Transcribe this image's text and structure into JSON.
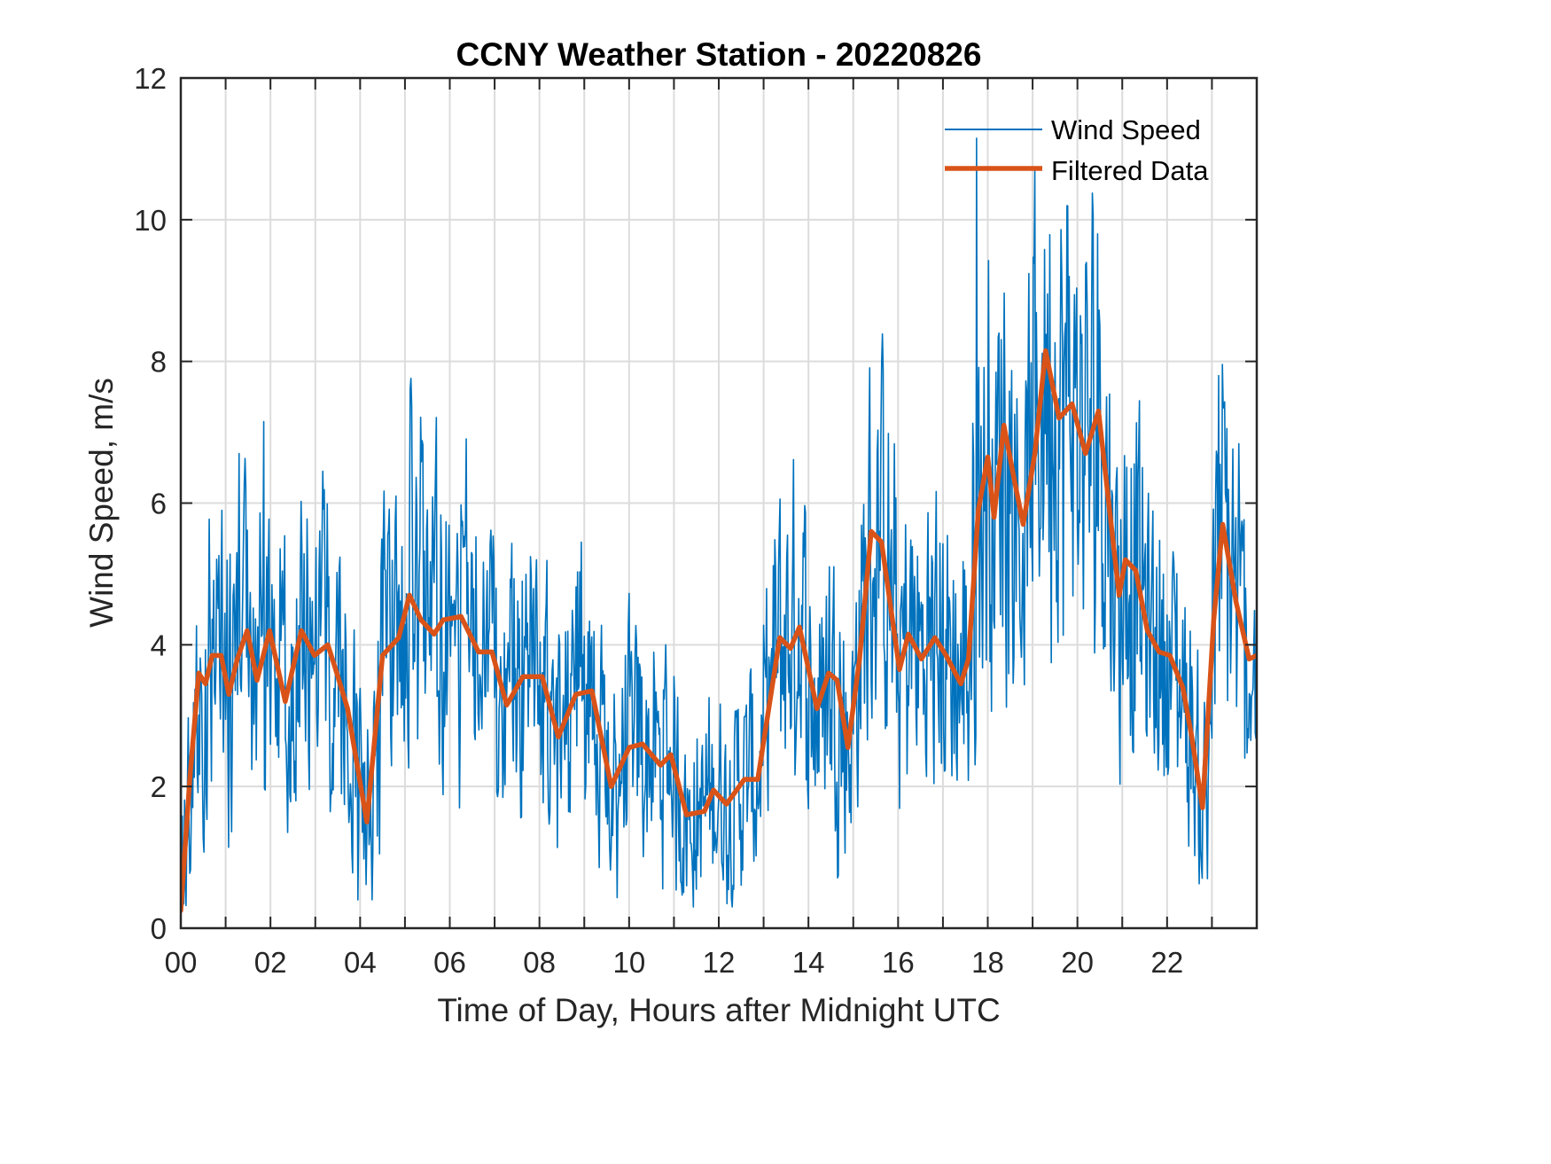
{
  "chart_data": {
    "type": "line",
    "title": "CCNY Weather Station - 20220826",
    "xlabel": "Time of Day, Hours after Midnight UTC",
    "ylabel": "Wind Speed, m/s",
    "xlim": [
      0,
      24
    ],
    "ylim": [
      0,
      12
    ],
    "xticks": [
      0,
      2,
      4,
      6,
      8,
      10,
      12,
      14,
      16,
      18,
      20,
      22
    ],
    "xtick_labels": [
      "00",
      "02",
      "04",
      "06",
      "08",
      "10",
      "12",
      "14",
      "16",
      "18",
      "20",
      "22"
    ],
    "yticks": [
      0,
      2,
      4,
      6,
      8,
      10,
      12
    ],
    "ytick_labels": [
      "0",
      "2",
      "4",
      "6",
      "8",
      "10",
      "12"
    ],
    "grid": true,
    "grid_x_step_hours": 1,
    "legend": {
      "placement": "top-right",
      "entries": [
        "Wind Speed",
        "Filtered Data"
      ]
    },
    "series": [
      {
        "name": "Wind Speed",
        "color": "#0072BD",
        "style": "thin noisy line",
        "description": "high-frequency raw samples fluctuating roughly ±1.5 m/s around the filtered curve",
        "notable_peaks": [
          {
            "x": 1.3,
            "y": 6.7
          },
          {
            "x": 1.85,
            "y": 7.15
          },
          {
            "x": 4.8,
            "y": 6.1
          },
          {
            "x": 17.75,
            "y": 11.15
          },
          {
            "x": 19.05,
            "y": 10.7
          },
          {
            "x": 20.45,
            "y": 9.8
          },
          {
            "x": 23.15,
            "y": 7.8
          }
        ],
        "notable_minima": [
          {
            "x": 3.95,
            "y": 0.4
          },
          {
            "x": 11.5,
            "y": 0.55
          },
          {
            "x": 22.9,
            "y": 0.7
          }
        ]
      },
      {
        "name": "Filtered Data",
        "color": "#D95319",
        "style": "thick smooth line",
        "x": [
          0,
          0.2,
          0.4,
          0.55,
          0.7,
          0.9,
          1.07,
          1.26,
          1.48,
          1.7,
          1.98,
          2.33,
          2.69,
          2.98,
          3.28,
          3.48,
          3.72,
          4.15,
          4.5,
          4.86,
          5.1,
          5.36,
          5.65,
          5.85,
          6.25,
          6.64,
          6.94,
          7.27,
          7.63,
          8.06,
          8.42,
          8.81,
          9.17,
          9.6,
          10.0,
          10.3,
          10.7,
          10.93,
          11.28,
          11.68,
          11.88,
          12.17,
          12.57,
          12.87,
          13.36,
          13.6,
          13.8,
          14.19,
          14.45,
          14.64,
          14.88,
          15.14,
          15.4,
          15.63,
          16.03,
          16.23,
          16.52,
          16.82,
          17.07,
          17.4,
          17.57,
          17.79,
          18.0,
          18.14,
          18.36,
          18.6,
          18.79,
          19.05,
          19.29,
          19.59,
          19.88,
          20.18,
          20.47,
          20.77,
          20.93,
          21.07,
          21.3,
          21.56,
          21.82,
          22.06,
          22.35,
          22.55,
          22.79,
          23.04,
          23.24,
          23.54,
          23.83,
          24.0
        ],
        "y": [
          0.25,
          2.1,
          3.6,
          3.45,
          3.85,
          3.85,
          3.3,
          3.8,
          4.2,
          3.5,
          4.2,
          3.2,
          4.2,
          3.85,
          4.0,
          3.6,
          3.1,
          1.5,
          3.85,
          4.1,
          4.7,
          4.35,
          4.15,
          4.35,
          4.4,
          3.9,
          3.9,
          3.15,
          3.55,
          3.55,
          2.7,
          3.3,
          3.35,
          2.0,
          2.55,
          2.6,
          2.3,
          2.45,
          1.6,
          1.65,
          1.95,
          1.75,
          2.1,
          2.1,
          4.1,
          3.95,
          4.25,
          3.1,
          3.6,
          3.5,
          2.55,
          3.8,
          5.6,
          5.45,
          3.65,
          4.15,
          3.8,
          4.1,
          3.85,
          3.45,
          3.8,
          5.9,
          6.65,
          5.8,
          7.1,
          6.3,
          5.7,
          6.7,
          8.15,
          7.2,
          7.4,
          6.7,
          7.3,
          5.6,
          4.7,
          5.2,
          5.05,
          4.2,
          3.9,
          3.85,
          3.4,
          2.7,
          1.7,
          4.35,
          5.7,
          4.6,
          3.8,
          3.85
        ]
      }
    ]
  }
}
